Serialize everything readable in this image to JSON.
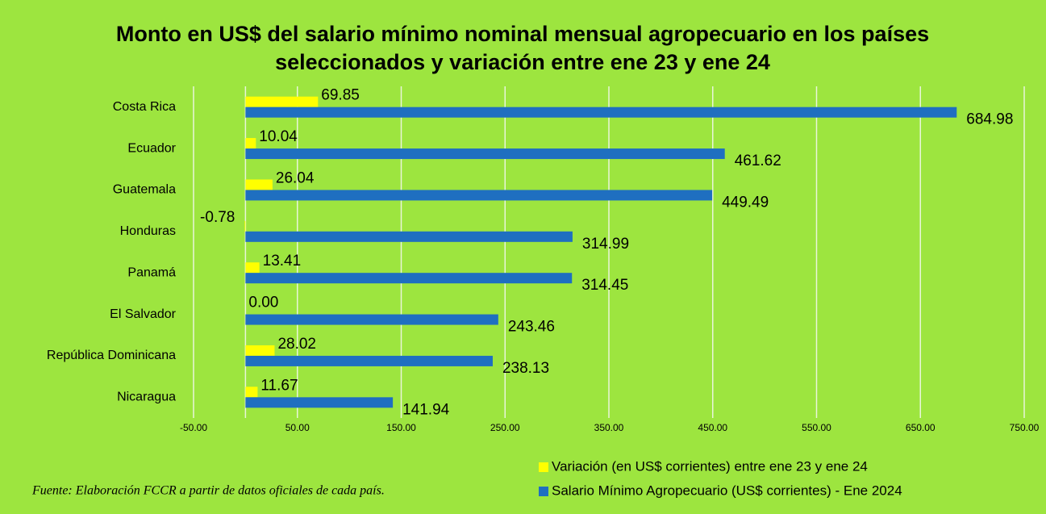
{
  "chart_data": {
    "type": "hbar",
    "title": [
      "Monto en US$ del salario mínimo nominal mensual agropecuario en los países",
      "seleccionados y variación entre ene 23 y ene 24"
    ],
    "categories": [
      "Costa Rica",
      "Ecuador",
      "Guatemala",
      "Honduras",
      "Panamá",
      "El Salvador",
      "República Dominicana",
      "Nicaragua"
    ],
    "series": [
      {
        "name": "Variación (en US$ corrientes) entre ene 23 y ene 24",
        "color": "#ffff00",
        "values": [
          69.85,
          10.04,
          26.04,
          -0.78,
          13.41,
          0,
          28.02,
          11.67
        ],
        "value_labels": [
          "69.85",
          "10.04",
          "26.04",
          "-0.78",
          "13.41",
          "0.00",
          "28.02",
          "11.67"
        ]
      },
      {
        "name": "Salario Mínimo Agropecuario (US$ corrientes) - Ene 2024",
        "color": "#1f6fc0",
        "values": [
          684.98,
          461.62,
          449.49,
          314.99,
          314.45,
          243.46,
          238.13,
          141.94
        ],
        "value_labels": [
          "684.98",
          "461.62",
          "449.49",
          "314.99",
          "314.45",
          "243.46",
          "238.13",
          "141.94"
        ]
      }
    ],
    "xlim": [
      -50,
      750
    ],
    "xticks": [
      {
        "value": -50,
        "label": "-50.00"
      },
      {
        "value": 50,
        "label": "50.00"
      },
      {
        "value": 150,
        "label": "150.00"
      },
      {
        "value": 250,
        "label": "250.00"
      },
      {
        "value": 350,
        "label": "350.00"
      },
      {
        "value": 450,
        "label": "450.00"
      },
      {
        "value": 550,
        "label": "550.00"
      },
      {
        "value": 650,
        "label": "650.00"
      },
      {
        "value": 750,
        "label": "750.00"
      }
    ],
    "grid": true,
    "source": "Fuente: Elaboración FCCR a partir de datos oficiales de cada país."
  }
}
